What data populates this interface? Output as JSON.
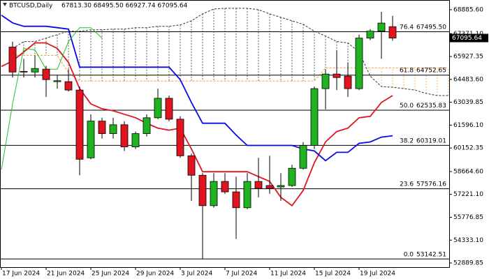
{
  "chart_data": {
    "type": "candlestick",
    "title": "BTCUSD,Daily",
    "ohlc_label": "67813.30 68495.50 66927.74 67095.64",
    "categories": [
      "17 Jun 2024",
      null,
      null,
      null,
      "21 Jun 2024",
      null,
      null,
      null,
      "25 Jun 2024",
      null,
      null,
      null,
      "29 Jun 2024",
      null,
      null,
      null,
      "3 Jul 2024",
      null,
      null,
      null,
      "7 Jul 2024",
      null,
      null,
      null,
      "11 Jul 2024",
      null,
      null,
      null,
      "15 Jul 2024",
      null,
      null,
      null,
      "19 Jul 2024",
      null,
      null,
      null,
      null,
      null,
      null,
      null,
      null
    ],
    "open": [
      null,
      66523,
      64990,
      64950,
      65130,
      64340,
      64340,
      63810,
      59530,
      61850,
      61060,
      61620,
      60220,
      61060,
      62060,
      63290,
      61970,
      59660,
      58430,
      56510,
      58040,
      57380,
      56380,
      58040,
      57780,
      57690,
      57780,
      58870,
      60310,
      63900,
      64820,
      64690,
      63900,
      67090,
      67530,
      67813.3,
      null,
      null,
      null,
      null,
      null
    ],
    "high": [
      null,
      66873,
      65780,
      66000,
      65340,
      64780,
      65130,
      64030,
      62280,
      62060,
      62060,
      61840,
      61190,
      62280,
      63900,
      63460,
      62150,
      59790,
      58560,
      58560,
      58560,
      58340,
      58560,
      59530,
      59660,
      58560,
      59090,
      60530,
      64030,
      65130,
      66310,
      65560,
      67310,
      67660,
      68750,
      68495.5,
      null,
      null,
      null,
      null,
      null
    ],
    "low": [
      null,
      64599,
      64600,
      64600,
      63375,
      63900,
      63720,
      58430,
      59440,
      60750,
      60750,
      59960,
      60090,
      60880,
      61970,
      61840,
      59530,
      56815,
      53142.51,
      56380,
      57250,
      54410,
      56290,
      57030,
      57250,
      56815,
      57690,
      58780,
      60090,
      62590,
      63810,
      63375,
      63810,
      66960,
      65780,
      66927.74,
      null,
      null,
      null,
      null,
      null
    ],
    "close": [
      null,
      64949,
      64950,
      65170,
      64470,
      64400,
      63810,
      59440,
      61850,
      61060,
      61620,
      60220,
      61060,
      62060,
      63290,
      61970,
      59660,
      58430,
      56510,
      58040,
      57380,
      56380,
      58040,
      57600,
      57600,
      57780,
      58870,
      60310,
      63900,
      64820,
      64600,
      63900,
      67090,
      67530,
      68040,
      67095.64,
      null,
      null,
      null,
      null,
      null
    ],
    "up_color": "#1fb41f",
    "down_color": "#e0141e",
    "series": [
      {
        "color": "#e0141e",
        "values": [
          65299,
          65649,
          66217,
          66786,
          66786,
          66436,
          65561,
          63899,
          62937,
          62631,
          62500,
          62282,
          62063,
          61713,
          61407,
          61276,
          61407,
          60095,
          58652,
          58652,
          58652,
          58652,
          58652,
          58346,
          58040,
          57034,
          56509,
          57471,
          59220,
          60532,
          61188,
          61407,
          62063,
          62150,
          63025,
          63462,
          null,
          null,
          null,
          null,
          null
        ]
      },
      {
        "color": "#0a0ae6",
        "values": [
          68535,
          68054,
          67835,
          67835,
          67835,
          67748,
          67660,
          65255,
          65255,
          65255,
          65255,
          65255,
          65255,
          65255,
          65255,
          65255,
          64468,
          63025,
          61713,
          61713,
          61713,
          60970,
          60314,
          60314,
          60314,
          60314,
          60314,
          60095,
          59964,
          59352,
          59876,
          59876,
          60445,
          60532,
          60839,
          60926,
          null,
          null,
          null,
          null,
          null
        ]
      },
      {
        "color": "#22c022",
        "values": [
          58783,
          62938,
          66436,
          66348,
          65124,
          65124,
          66873,
          67748,
          67748,
          67096,
          null,
          null,
          null,
          null,
          null,
          null,
          null,
          null,
          null,
          null,
          null,
          null,
          null,
          null,
          null,
          null,
          null,
          null,
          null,
          null,
          null,
          null,
          null,
          null,
          null,
          null,
          null,
          null,
          null,
          null,
          null
        ]
      }
    ],
    "cloud": [
      {
        "color": "#333333",
        "values": [
          null,
          66436,
          66873,
          66873,
          67092,
          67310,
          67529,
          67529,
          67617,
          67617,
          67660,
          67660,
          67748,
          67748,
          67835,
          67835,
          67923,
          68185,
          68622,
          68929,
          68972,
          68972,
          68972,
          68885,
          68622,
          68404,
          68185,
          67966,
          67529,
          67223,
          66873,
          66786,
          66217,
          64687,
          64031,
          63987,
          63899,
          63812,
          63593,
          63462,
          63462
        ]
      },
      {
        "color": "#e8a040",
        "values": [
          null,
          66000,
          66000,
          66000,
          66000,
          66000,
          64905,
          64380,
          64380,
          64380,
          64380,
          64380,
          64380,
          64380,
          64380,
          64380,
          64380,
          64380,
          64380,
          64380,
          64380,
          64380,
          64380,
          64380,
          64380,
          64380,
          64380,
          64380,
          64380,
          65211,
          65211,
          65211,
          65211,
          65211,
          65211,
          65211,
          65211,
          65211,
          65211,
          65211,
          65211
        ]
      }
    ],
    "levels": [
      {
        "ratio": "76.4",
        "price": {
          "value": 67495.5,
          "label": "67495.50"
        }
      },
      {
        "ratio": "61.8",
        "price": 64752.65
      },
      {
        "ratio": "50.0",
        "price": 62535.83
      },
      {
        "ratio": "38.2",
        "price": 60319.01
      },
      {
        "ratio": "23.6",
        "price": 57576.16
      },
      {
        "ratio": "0.0",
        "price": 53142.51
      }
    ],
    "ylim": [
      52627,
      69497
    ],
    "yticks": [
      {
        "value": 68885.6,
        "label": "68885.60"
      },
      {
        "value": 67371.1,
        "label": "67371.10"
      },
      65927.35,
      {
        "value": 64483.6,
        "label": "64483.60"
      },
      63039.85,
      {
        "value": 61596.1,
        "label": "61596.10"
      },
      60152.35,
      {
        "value": 58664.6,
        "label": "58664.60"
      },
      {
        "value": 57221.1,
        "label": "57221.10"
      },
      55776.85,
      {
        "value": 54333.1,
        "label": "54333.10"
      },
      52889.85
    ]
  }
}
